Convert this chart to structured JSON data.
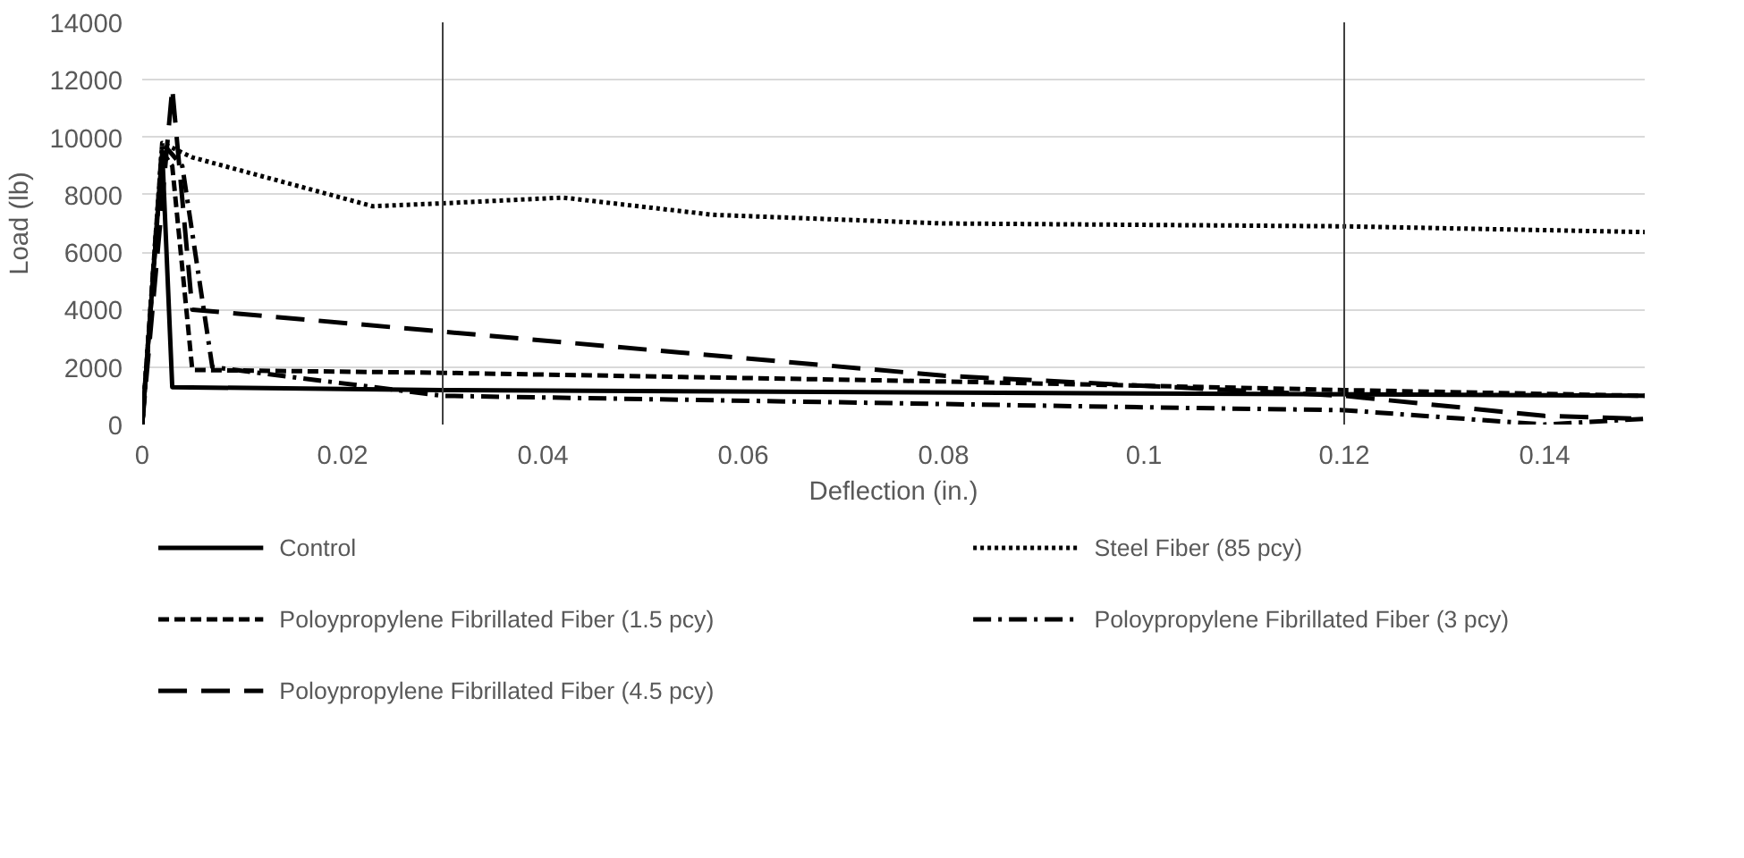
{
  "chart_data": {
    "type": "line",
    "xlabel": "Deflection (in.)",
    "ylabel": "Load (lb)",
    "xlim": [
      0,
      0.15
    ],
    "xticks": [
      {
        "value": 0,
        "label": "0"
      },
      0.02,
      0.04,
      0.06,
      0.08,
      0.1,
      0.12,
      0.14
    ],
    "ylim": [
      0,
      14000
    ],
    "yticks": [
      0,
      2000,
      4000,
      6000,
      8000,
      10000,
      12000,
      14000
    ],
    "grid": "y",
    "legend": "bottom",
    "marker": "none",
    "ref_lines": [
      {
        "axis": "x",
        "value": 0.03,
        "label": null,
        "color": "#404040"
      },
      {
        "axis": "x",
        "value": 0.12,
        "label": null,
        "color": "#404040"
      }
    ],
    "series": [
      {
        "name": "Control",
        "color": "#000000",
        "line_style": "solid",
        "x": [
          0,
          0.002,
          0.003,
          0.03,
          0.15
        ],
        "values": [
          0,
          9500,
          1300,
          1200,
          1000
        ]
      },
      {
        "name": "Steel Fiber (85 pcy)",
        "color": "#000000",
        "line_style": "dotted",
        "x": [
          0,
          0.002,
          0.005,
          0.023,
          0.03,
          0.042,
          0.057,
          0.08,
          0.12,
          0.15
        ],
        "values": [
          0,
          9800,
          9300,
          7600,
          7700,
          7900,
          7300,
          7000,
          6900,
          6700
        ]
      },
      {
        "name": "Poloypropylene Fibrillated Fiber (1.5 pcy)",
        "color": "#000000",
        "line_style": "dashed",
        "x": [
          0,
          0.002,
          0.003,
          0.005,
          0.03,
          0.08,
          0.12,
          0.15
        ],
        "values": [
          0,
          9500,
          9000,
          1900,
          1800,
          1500,
          1200,
          1000
        ]
      },
      {
        "name": "Poloypropylene Fibrillated Fiber (3 pcy)",
        "color": "#000000",
        "line_style": "dashdot",
        "x": [
          0,
          0.002,
          0.004,
          0.007,
          0.03,
          0.1,
          0.12,
          0.14,
          0.15
        ],
        "values": [
          0,
          9800,
          9000,
          2000,
          1000,
          600,
          500,
          0,
          200
        ]
      },
      {
        "name": "Poloypropylene Fibrillated Fiber (4.5 pcy)",
        "color": "#000000",
        "line_style": "longdash",
        "x": [
          0,
          0.003,
          0.005,
          0.08,
          0.12,
          0.14,
          0.15
        ],
        "values": [
          0,
          11700,
          4000,
          1700,
          1000,
          300,
          200
        ]
      }
    ]
  }
}
